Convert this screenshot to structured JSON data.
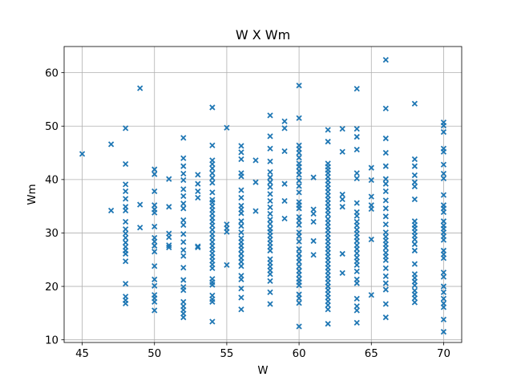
{
  "chart_data": {
    "type": "scatter",
    "title": "W X Wm",
    "xlabel": "W",
    "ylabel": "Wm",
    "xlim": [
      43.75,
      71.25
    ],
    "ylim": [
      9.5,
      64.9
    ],
    "x_ticks": [
      45,
      50,
      55,
      60,
      65,
      70
    ],
    "y_ticks": [
      10,
      20,
      30,
      40,
      50,
      60
    ],
    "grid": true,
    "marker": "x",
    "color": "#1f77b4",
    "points": [
      [
        45,
        44.8
      ],
      [
        47,
        46.6
      ],
      [
        47,
        34.2
      ],
      [
        48,
        49.6
      ],
      [
        48,
        42.9
      ],
      [
        48,
        39.1
      ],
      [
        48,
        37.8
      ],
      [
        48,
        36.4
      ],
      [
        48,
        34.9
      ],
      [
        48,
        34.2
      ],
      [
        48,
        32.1
      ],
      [
        48,
        30.7
      ],
      [
        48,
        29.9
      ],
      [
        48,
        29.1
      ],
      [
        48,
        28.2
      ],
      [
        48,
        27.4
      ],
      [
        48,
        26.7
      ],
      [
        48,
        26.1
      ],
      [
        48,
        24.7
      ],
      [
        48,
        20.5
      ],
      [
        48,
        18.1
      ],
      [
        48,
        17.4
      ],
      [
        48,
        16.8
      ],
      [
        49,
        57.1
      ],
      [
        49,
        35.3
      ],
      [
        49,
        31.0
      ],
      [
        50,
        41.9
      ],
      [
        50,
        41.0
      ],
      [
        50,
        37.8
      ],
      [
        50,
        35.2
      ],
      [
        50,
        34.4
      ],
      [
        50,
        33.8
      ],
      [
        50,
        31.2
      ],
      [
        50,
        29.1
      ],
      [
        50,
        28.4
      ],
      [
        50,
        27.6
      ],
      [
        50,
        26.5
      ],
      [
        50,
        23.8
      ],
      [
        50,
        21.3
      ],
      [
        50,
        20.1
      ],
      [
        50,
        18.4
      ],
      [
        50,
        17.8
      ],
      [
        50,
        17.1
      ],
      [
        50,
        15.5
      ],
      [
        51,
        40.1
      ],
      [
        51,
        34.9
      ],
      [
        51,
        29.9
      ],
      [
        51,
        29.2
      ],
      [
        51,
        27.7
      ],
      [
        51,
        27.3
      ],
      [
        52,
        47.8
      ],
      [
        52,
        44.0
      ],
      [
        52,
        42.5
      ],
      [
        52,
        41.1
      ],
      [
        52,
        39.9
      ],
      [
        52,
        38.2
      ],
      [
        52,
        36.9
      ],
      [
        52,
        35.5
      ],
      [
        52,
        34.6
      ],
      [
        52,
        32.4
      ],
      [
        52,
        31.5
      ],
      [
        52,
        29.8
      ],
      [
        52,
        28.3
      ],
      [
        52,
        26.8
      ],
      [
        52,
        25.7
      ],
      [
        52,
        23.5
      ],
      [
        52,
        21.2
      ],
      [
        52,
        19.9
      ],
      [
        52,
        19.3
      ],
      [
        52,
        17.1
      ],
      [
        52,
        16.3
      ],
      [
        52,
        15.6
      ],
      [
        52,
        14.9
      ],
      [
        52,
        14.2
      ],
      [
        53,
        40.9
      ],
      [
        53,
        39.2
      ],
      [
        53,
        37.8
      ],
      [
        53,
        36.6
      ],
      [
        53,
        27.5
      ],
      [
        53,
        27.3
      ],
      [
        54,
        53.5
      ],
      [
        54,
        46.4
      ],
      [
        54,
        43.6
      ],
      [
        54,
        42.9
      ],
      [
        54,
        42.1
      ],
      [
        54,
        41.2
      ],
      [
        54,
        40.3
      ],
      [
        54,
        39.4
      ],
      [
        54,
        37.6
      ],
      [
        54,
        36.2
      ],
      [
        54,
        35.7
      ],
      [
        54,
        35.0
      ],
      [
        54,
        34.3
      ],
      [
        54,
        33.6
      ],
      [
        54,
        32.8
      ],
      [
        54,
        32.1
      ],
      [
        54,
        31.4
      ],
      [
        54,
        30.6
      ],
      [
        54,
        29.8
      ],
      [
        54,
        29.1
      ],
      [
        54,
        28.3
      ],
      [
        54,
        27.6
      ],
      [
        54,
        26.9
      ],
      [
        54,
        26.2
      ],
      [
        54,
        25.5
      ],
      [
        54,
        24.8
      ],
      [
        54,
        24.1
      ],
      [
        54,
        23.4
      ],
      [
        54,
        21.4
      ],
      [
        54,
        20.8
      ],
      [
        54,
        20.3
      ],
      [
        54,
        18.3
      ],
      [
        54,
        17.6
      ],
      [
        54,
        17.1
      ],
      [
        54,
        13.4
      ],
      [
        55,
        49.7
      ],
      [
        55,
        31.6
      ],
      [
        55,
        30.9
      ],
      [
        55,
        30.2
      ],
      [
        55,
        24.0
      ],
      [
        56,
        46.3
      ],
      [
        56,
        45.1
      ],
      [
        56,
        43.8
      ],
      [
        56,
        41.2
      ],
      [
        56,
        40.6
      ],
      [
        56,
        38.0
      ],
      [
        56,
        36.6
      ],
      [
        56,
        35.1
      ],
      [
        56,
        34.4
      ],
      [
        56,
        33.7
      ],
      [
        56,
        32.2
      ],
      [
        56,
        31.3
      ],
      [
        56,
        30.1
      ],
      [
        56,
        29.0
      ],
      [
        56,
        28.3
      ],
      [
        56,
        27.6
      ],
      [
        56,
        26.9
      ],
      [
        56,
        26.1
      ],
      [
        56,
        25.3
      ],
      [
        56,
        24.6
      ],
      [
        56,
        23.8
      ],
      [
        56,
        22.0
      ],
      [
        56,
        21.3
      ],
      [
        56,
        19.6
      ],
      [
        56,
        17.9
      ],
      [
        56,
        15.7
      ],
      [
        57,
        43.6
      ],
      [
        57,
        39.5
      ],
      [
        57,
        34.1
      ],
      [
        58,
        52.0
      ],
      [
        58,
        48.1
      ],
      [
        58,
        45.8
      ],
      [
        58,
        43.4
      ],
      [
        58,
        41.4
      ],
      [
        58,
        40.4
      ],
      [
        58,
        39.5
      ],
      [
        58,
        38.6
      ],
      [
        58,
        37.3
      ],
      [
        58,
        36.0
      ],
      [
        58,
        34.8
      ],
      [
        58,
        33.6
      ],
      [
        58,
        32.5
      ],
      [
        58,
        31.7
      ],
      [
        58,
        30.8
      ],
      [
        58,
        30.2
      ],
      [
        58,
        29.5
      ],
      [
        58,
        28.8
      ],
      [
        58,
        28.1
      ],
      [
        58,
        27.4
      ],
      [
        58,
        26.7
      ],
      [
        58,
        25.1
      ],
      [
        58,
        24.4
      ],
      [
        58,
        23.7
      ],
      [
        58,
        23.0
      ],
      [
        58,
        22.3
      ],
      [
        58,
        21.0
      ],
      [
        58,
        18.9
      ],
      [
        58,
        16.7
      ],
      [
        59,
        50.9
      ],
      [
        59,
        49.6
      ],
      [
        59,
        45.3
      ],
      [
        59,
        39.2
      ],
      [
        59,
        36.0
      ],
      [
        59,
        32.7
      ],
      [
        60,
        57.6
      ],
      [
        60,
        51.5
      ],
      [
        60,
        46.4
      ],
      [
        60,
        45.7
      ],
      [
        60,
        45.0
      ],
      [
        60,
        44.1
      ],
      [
        60,
        43.0
      ],
      [
        60,
        42.4
      ],
      [
        60,
        41.6
      ],
      [
        60,
        40.9
      ],
      [
        60,
        39.8
      ],
      [
        60,
        38.8
      ],
      [
        60,
        37.6
      ],
      [
        60,
        35.8
      ],
      [
        60,
        35.2
      ],
      [
        60,
        34.6
      ],
      [
        60,
        33.0
      ],
      [
        60,
        32.3
      ],
      [
        60,
        31.5
      ],
      [
        60,
        30.1
      ],
      [
        60,
        29.4
      ],
      [
        60,
        28.4
      ],
      [
        60,
        27.0
      ],
      [
        60,
        26.1
      ],
      [
        60,
        25.3
      ],
      [
        60,
        24.6
      ],
      [
        60,
        23.7
      ],
      [
        60,
        22.9
      ],
      [
        60,
        22.2
      ],
      [
        60,
        21.4
      ],
      [
        60,
        20.8
      ],
      [
        60,
        20.2
      ],
      [
        60,
        18.5
      ],
      [
        60,
        17.8
      ],
      [
        60,
        16.9
      ],
      [
        60,
        12.5
      ],
      [
        61,
        40.4
      ],
      [
        61,
        34.4
      ],
      [
        61,
        33.6
      ],
      [
        61,
        32.1
      ],
      [
        61,
        28.5
      ],
      [
        61,
        25.9
      ],
      [
        62,
        49.3
      ],
      [
        62,
        47.1
      ],
      [
        62,
        43.0
      ],
      [
        62,
        42.4
      ],
      [
        62,
        41.8
      ],
      [
        62,
        41.2
      ],
      [
        62,
        40.5
      ],
      [
        62,
        39.8
      ],
      [
        62,
        39.1
      ],
      [
        62,
        38.4
      ],
      [
        62,
        37.7
      ],
      [
        62,
        37.0
      ],
      [
        62,
        36.3
      ],
      [
        62,
        35.6
      ],
      [
        62,
        34.9
      ],
      [
        62,
        34.2
      ],
      [
        62,
        33.5
      ],
      [
        62,
        32.6
      ],
      [
        62,
        31.9
      ],
      [
        62,
        31.2
      ],
      [
        62,
        30.5
      ],
      [
        62,
        29.8
      ],
      [
        62,
        29.1
      ],
      [
        62,
        28.4
      ],
      [
        62,
        27.7
      ],
      [
        62,
        27.0
      ],
      [
        62,
        26.3
      ],
      [
        62,
        25.6
      ],
      [
        62,
        24.9
      ],
      [
        62,
        24.2
      ],
      [
        62,
        23.5
      ],
      [
        62,
        22.8
      ],
      [
        62,
        22.1
      ],
      [
        62,
        21.4
      ],
      [
        62,
        20.7
      ],
      [
        62,
        20.0
      ],
      [
        62,
        19.3
      ],
      [
        62,
        18.6
      ],
      [
        62,
        17.9
      ],
      [
        62,
        17.2
      ],
      [
        62,
        16.5
      ],
      [
        62,
        15.7
      ],
      [
        62,
        13.0
      ],
      [
        63,
        49.5
      ],
      [
        63,
        45.2
      ],
      [
        63,
        37.2
      ],
      [
        63,
        36.3
      ],
      [
        63,
        34.9
      ],
      [
        63,
        26.1
      ],
      [
        63,
        22.5
      ],
      [
        64,
        57.0
      ],
      [
        64,
        49.5
      ],
      [
        64,
        48.0
      ],
      [
        64,
        45.6
      ],
      [
        64,
        41.2
      ],
      [
        64,
        40.2
      ],
      [
        64,
        35.6
      ],
      [
        64,
        33.9
      ],
      [
        64,
        33.2
      ],
      [
        64,
        32.1
      ],
      [
        64,
        31.4
      ],
      [
        64,
        30.6
      ],
      [
        64,
        29.9
      ],
      [
        64,
        29.2
      ],
      [
        64,
        28.5
      ],
      [
        64,
        27.7
      ],
      [
        64,
        27.0
      ],
      [
        64,
        26.2
      ],
      [
        64,
        25.4
      ],
      [
        64,
        24.7
      ],
      [
        64,
        24.0
      ],
      [
        64,
        22.8
      ],
      [
        64,
        21.3
      ],
      [
        64,
        20.6
      ],
      [
        64,
        17.7
      ],
      [
        64,
        16.3
      ],
      [
        64,
        15.5
      ],
      [
        64,
        13.2
      ],
      [
        65,
        42.2
      ],
      [
        65,
        39.9
      ],
      [
        65,
        36.8
      ],
      [
        65,
        35.2
      ],
      [
        65,
        34.5
      ],
      [
        65,
        28.8
      ],
      [
        65,
        18.4
      ],
      [
        66,
        62.4
      ],
      [
        66,
        53.3
      ],
      [
        66,
        47.7
      ],
      [
        66,
        45.0
      ],
      [
        66,
        42.5
      ],
      [
        66,
        40.1
      ],
      [
        66,
        39.2
      ],
      [
        66,
        37.8
      ],
      [
        66,
        36.1
      ],
      [
        66,
        34.6
      ],
      [
        66,
        33.1
      ],
      [
        66,
        31.6
      ],
      [
        66,
        30.1
      ],
      [
        66,
        29.3
      ],
      [
        66,
        28.6
      ],
      [
        66,
        27.9
      ],
      [
        66,
        27.2
      ],
      [
        66,
        26.3
      ],
      [
        66,
        25.6
      ],
      [
        66,
        24.9
      ],
      [
        66,
        23.4
      ],
      [
        66,
        21.9
      ],
      [
        66,
        20.6
      ],
      [
        66,
        19.4
      ],
      [
        66,
        16.7
      ],
      [
        66,
        14.2
      ],
      [
        68,
        54.2
      ],
      [
        68,
        43.8
      ],
      [
        68,
        42.5
      ],
      [
        68,
        40.8
      ],
      [
        68,
        39.5
      ],
      [
        68,
        38.7
      ],
      [
        68,
        36.3
      ],
      [
        68,
        32.2
      ],
      [
        68,
        31.5
      ],
      [
        68,
        30.9
      ],
      [
        68,
        30.2
      ],
      [
        68,
        29.5
      ],
      [
        68,
        28.8
      ],
      [
        68,
        27.9
      ],
      [
        68,
        26.7
      ],
      [
        68,
        24.2
      ],
      [
        68,
        22.3
      ],
      [
        68,
        21.6
      ],
      [
        68,
        20.9
      ],
      [
        68,
        20.2
      ],
      [
        68,
        19.2
      ],
      [
        68,
        18.5
      ],
      [
        68,
        17.8
      ],
      [
        68,
        17.0
      ],
      [
        70,
        50.7
      ],
      [
        70,
        50.1
      ],
      [
        70,
        48.9
      ],
      [
        70,
        45.8
      ],
      [
        70,
        45.2
      ],
      [
        70,
        42.8
      ],
      [
        70,
        41.1
      ],
      [
        70,
        40.2
      ],
      [
        70,
        37.1
      ],
      [
        70,
        35.2
      ],
      [
        70,
        34.6
      ],
      [
        70,
        33.9
      ],
      [
        70,
        32.2
      ],
      [
        70,
        31.4
      ],
      [
        70,
        30.8
      ],
      [
        70,
        30.1
      ],
      [
        70,
        29.4
      ],
      [
        70,
        28.7
      ],
      [
        70,
        26.7
      ],
      [
        70,
        26.0
      ],
      [
        70,
        25.3
      ],
      [
        70,
        22.6
      ],
      [
        70,
        21.8
      ],
      [
        70,
        20.0
      ],
      [
        70,
        18.9
      ],
      [
        70,
        17.7
      ],
      [
        70,
        16.8
      ],
      [
        70,
        16.1
      ],
      [
        70,
        13.8
      ],
      [
        70,
        11.5
      ]
    ]
  }
}
